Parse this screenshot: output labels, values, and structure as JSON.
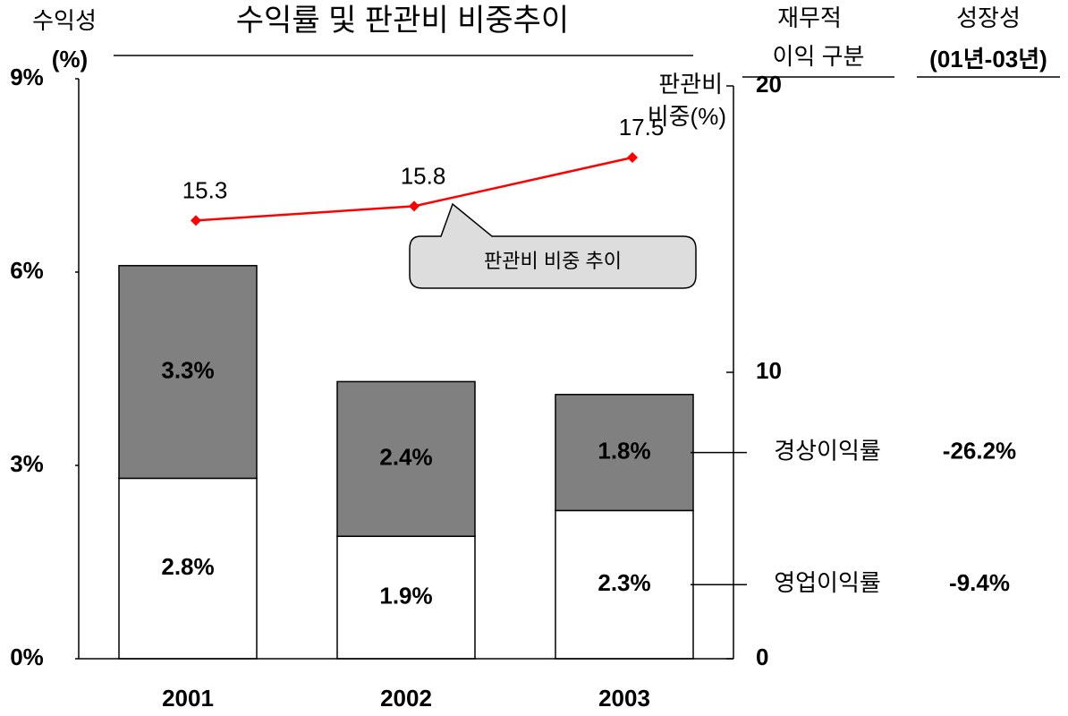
{
  "chart_data": {
    "type": "bar",
    "title": "수익률 및 판관비 비중추이",
    "y_label": [
      "수익성",
      "(%)"
    ],
    "y2_label": [
      "판관비",
      "비중(%)"
    ],
    "row_header": [
      "재무적",
      "이익 구분"
    ],
    "growth_header": [
      "성장성",
      "(01년-03년)"
    ],
    "categories": [
      "2001",
      "2002",
      "2003"
    ],
    "series": [
      {
        "name": "영업이익률",
        "color": "#ffffff",
        "values": [
          2.8,
          1.9,
          2.3
        ],
        "value_labels": [
          "2.8%",
          "1.9%",
          "2.3%"
        ],
        "growth": "-9.4%"
      },
      {
        "name": "경상이익률",
        "color": "#808080",
        "values": [
          3.3,
          2.4,
          1.8
        ],
        "value_labels": [
          "3.3%",
          "2.4%",
          "1.8%"
        ],
        "growth": "-26.2%"
      },
      {
        "name": "판관비 비중 추이",
        "type": "line",
        "axis": "y2",
        "color": "#ff0000",
        "values": [
          15.3,
          15.8,
          17.5
        ]
      }
    ],
    "ylim": [
      0,
      9
    ],
    "yticks": [
      {
        "value": 0,
        "label": "0%"
      },
      {
        "value": 3,
        "label": "3%"
      },
      {
        "value": 6,
        "label": "6%"
      },
      {
        "value": 9,
        "label": "9%"
      }
    ],
    "y2lim": [
      0,
      20
    ],
    "y2ticks": [
      0,
      10,
      20
    ],
    "stacked": true
  }
}
